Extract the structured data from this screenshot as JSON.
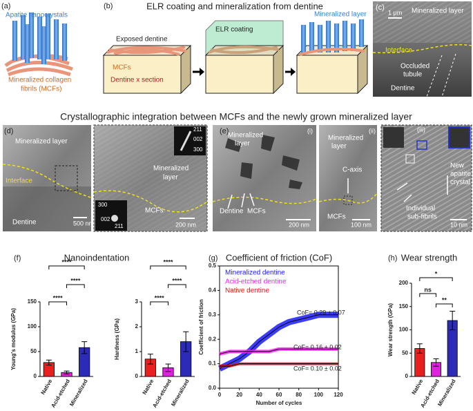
{
  "panels": {
    "a": {
      "label": "(a)",
      "texts": [
        "Apatite nanocrystals",
        "Mineralized collagen",
        "fibrils (MCFs)"
      ]
    },
    "b": {
      "label": "(b)",
      "title": "ELR coating and mineralization from dentine",
      "texts": [
        "Exposed dentine",
        "MCFs",
        "Dentine x section",
        "ELR coating",
        "Mineralized layer"
      ]
    },
    "c": {
      "label": "(c)",
      "texts": [
        "1 μm",
        "Mineralized layer",
        "Interface",
        "Occluded",
        "tubule",
        "Dentine"
      ]
    },
    "middle_title": "Crystallographic integration between MCFs and the newly grown mineralized layer",
    "d": {
      "label": "(d)",
      "texts": [
        "Mineralized layer",
        "Interface",
        "Dentine",
        "500 nm",
        "Mineralized",
        "layer",
        "MCFs",
        "200 nm",
        "211",
        "002",
        "300",
        "300",
        "002",
        "211"
      ]
    },
    "e": {
      "label": "(e)",
      "texts": [
        "(i)",
        "Mineralized",
        "layer",
        "Dentine",
        "MCFs",
        "200 nm",
        "(ii)",
        "Mineralized",
        "layer",
        "C-axis",
        "MCFs",
        "100 nm",
        "(iii)",
        "New",
        "apatite",
        "crystal",
        "Individual",
        "sub-fibrils",
        "10 nm"
      ]
    },
    "f": {
      "label": "(f)",
      "title": "Nanoindentation"
    },
    "g": {
      "label": "(g)"
    },
    "h": {
      "label": "(h)"
    }
  },
  "chart_data": [
    {
      "type": "bar",
      "ylabel": "Young's modulus (GPa)",
      "categories": [
        "Native",
        "Acid-etched",
        "Mineralized"
      ],
      "values": [
        28,
        8,
        58
      ],
      "errors": [
        5,
        3,
        12
      ],
      "colors": [
        "#e8201e",
        "#e020e0",
        "#2b2bb8"
      ],
      "ylim": [
        0,
        150
      ],
      "yticks": [
        0,
        50,
        100,
        150
      ],
      "significance": [
        {
          "label": "****",
          "between": [
            "Native",
            "Acid-etched"
          ]
        },
        {
          "label": "****",
          "between": [
            "Acid-etched",
            "Mineralized"
          ]
        },
        {
          "label": "****",
          "between": [
            "Native",
            "Mineralized"
          ]
        }
      ]
    },
    {
      "type": "bar",
      "ylabel": "Hardness (GPa)",
      "categories": [
        "Native",
        "Acid-etched",
        "Mineralized"
      ],
      "values": [
        0.7,
        0.35,
        1.4
      ],
      "errors": [
        0.2,
        0.15,
        0.4
      ],
      "colors": [
        "#e8201e",
        "#e020e0",
        "#2b2bb8"
      ],
      "ylim": [
        0,
        3
      ],
      "yticks": [
        0,
        1,
        2,
        3
      ],
      "significance": [
        {
          "label": "****",
          "between": [
            "Native",
            "Acid-etched"
          ]
        },
        {
          "label": "****",
          "between": [
            "Acid-etched",
            "Mineralized"
          ]
        },
        {
          "label": "****",
          "between": [
            "Native",
            "Mineralized"
          ]
        }
      ]
    },
    {
      "type": "line",
      "title": "Coefficient of friction (CoF)",
      "xlabel": "Number of cycles",
      "ylabel": "Coefficient of friction",
      "x": [
        0,
        10,
        20,
        30,
        40,
        50,
        60,
        70,
        80,
        90,
        100,
        110,
        120
      ],
      "series": [
        {
          "name": "Mineralized dentine",
          "color": "#1a1aff",
          "values": [
            0.08,
            0.1,
            0.12,
            0.15,
            0.19,
            0.22,
            0.25,
            0.27,
            0.28,
            0.29,
            0.3,
            0.3,
            0.3
          ]
        },
        {
          "name": "Acid-etched dentine",
          "color": "#ff20ff",
          "values": [
            0.14,
            0.15,
            0.15,
            0.15,
            0.15,
            0.15,
            0.16,
            0.16,
            0.16,
            0.16,
            0.16,
            0.16,
            0.16
          ]
        },
        {
          "name": "Native dentine",
          "color": "#e81010",
          "values": [
            0.09,
            0.09,
            0.1,
            0.1,
            0.1,
            0.1,
            0.1,
            0.1,
            0.1,
            0.1,
            0.1,
            0.1,
            0.1
          ]
        }
      ],
      "annotations": [
        "CoF= 0.29 ± 0.07",
        "CoF= 0.16 ± 0.02",
        "CoF= 0.10 ± 0.02"
      ],
      "xlim": [
        0,
        120
      ],
      "xticks": [
        0,
        20,
        40,
        60,
        80,
        100,
        120
      ],
      "ylim": [
        0,
        0.5
      ],
      "yticks": [
        {
          "value": 0,
          "label": "0.0"
        },
        0.1,
        0.2,
        0.3,
        0.4,
        0.5
      ]
    },
    {
      "type": "bar",
      "title": "Wear strength",
      "ylabel": "Wear strength (GPa)",
      "categories": [
        "Native",
        "Acid-etched",
        "Mineralized"
      ],
      "values": [
        60,
        30,
        120
      ],
      "errors": [
        10,
        8,
        20
      ],
      "colors": [
        "#e8201e",
        "#e020e0",
        "#2b2bb8"
      ],
      "ylim": [
        0,
        200
      ],
      "yticks": [
        0,
        50,
        100,
        150,
        200
      ],
      "significance": [
        {
          "label": "ns",
          "between": [
            "Native",
            "Acid-etched"
          ]
        },
        {
          "label": "**",
          "between": [
            "Acid-etched",
            "Mineralized"
          ]
        },
        {
          "label": "*",
          "between": [
            "Native",
            "Mineralized"
          ]
        }
      ]
    }
  ]
}
